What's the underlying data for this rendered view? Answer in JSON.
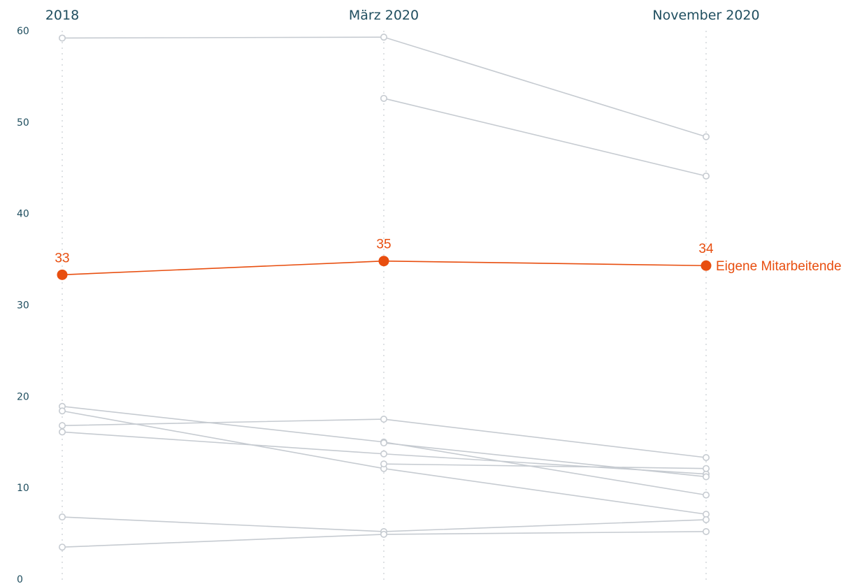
{
  "chart_data": {
    "type": "line",
    "categories": [
      "2018",
      "März 2020",
      "November 2020"
    ],
    "ylim": [
      0,
      60
    ],
    "yticks": [
      0,
      10,
      20,
      30,
      40,
      50,
      60
    ],
    "grid": "vertical-dotted",
    "colors": {
      "background_series": "#c6cbd1",
      "highlight": "#e84e0f",
      "axis_text": "#1f4e5f",
      "guide": "#c9cdd2"
    },
    "highlight": {
      "name": "Eigene Mitarbeitende",
      "values": [
        33.3,
        34.8,
        34.3
      ],
      "labels": [
        "33",
        "35",
        "34"
      ]
    },
    "series": [
      {
        "values": [
          59.2,
          59.3,
          48.4
        ]
      },
      {
        "values": [
          null,
          52.6,
          44.1
        ]
      },
      {
        "values": [
          18.9,
          15.0,
          9.2
        ]
      },
      {
        "values": [
          18.4,
          12.1,
          7.1
        ]
      },
      {
        "values": [
          16.8,
          17.5,
          13.3
        ]
      },
      {
        "values": [
          16.1,
          13.7,
          11.5
        ]
      },
      {
        "values": [
          null,
          14.9,
          11.2
        ]
      },
      {
        "values": [
          null,
          12.6,
          12.1
        ]
      },
      {
        "values": [
          6.8,
          5.2,
          6.5
        ]
      },
      {
        "values": [
          3.5,
          4.9,
          5.2
        ]
      }
    ]
  }
}
